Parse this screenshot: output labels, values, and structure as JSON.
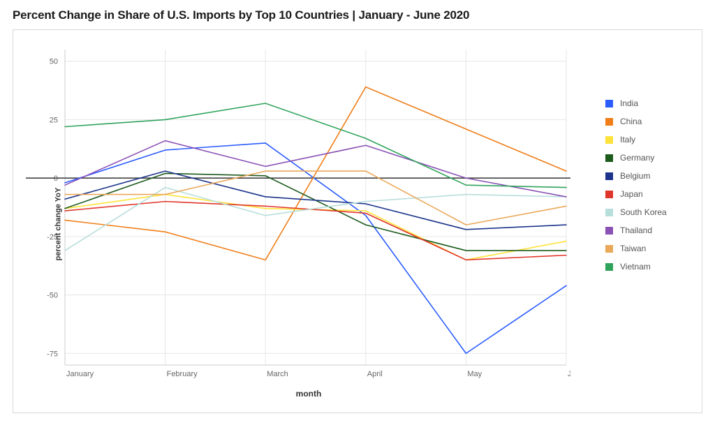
{
  "title": "Percent Change in Share of U.S. Imports by Top 10 Countries | January - June 2020",
  "chart": {
    "type": "line",
    "x_label": "month",
    "y_label": "percent change YoY",
    "categories": [
      "January",
      "February",
      "March",
      "April",
      "May",
      "June"
    ],
    "ylim": [
      -80,
      55
    ],
    "yticks": [
      -75,
      -50,
      -25,
      0,
      25,
      50
    ],
    "background_color": "#ffffff",
    "grid_color": "#e6e6e6",
    "axis_line_color": "#cccccc",
    "zero_line_color": "#333333",
    "zero_line_width": 1.5,
    "line_width": 1.6,
    "title_fontsize": 17,
    "label_fontsize": 12,
    "tick_fontsize": 11,
    "series": [
      {
        "name": "India",
        "color": "#2b5cff",
        "values": [
          -2,
          12,
          15,
          -16,
          -75,
          -46
        ]
      },
      {
        "name": "China",
        "color": "#ef7e18",
        "values": [
          -18,
          -23,
          -35,
          39,
          21,
          3
        ]
      },
      {
        "name": "Italy",
        "color": "#ffe33a",
        "values": [
          -13,
          -7,
          -13,
          -14,
          -35,
          -27
        ]
      },
      {
        "name": "Germany",
        "color": "#1d5b1d",
        "values": [
          -13,
          2,
          1,
          -20,
          -31,
          -31
        ]
      },
      {
        "name": "Belgium",
        "color": "#1c348c",
        "values": [
          -9,
          3,
          -8,
          -11,
          -22,
          -20
        ]
      },
      {
        "name": "Japan",
        "color": "#e0352b",
        "values": [
          -14,
          -10,
          -12,
          -15,
          -35,
          -33
        ]
      },
      {
        "name": "South Korea",
        "color": "#b7dedb",
        "values": [
          -31,
          -4,
          -16,
          -10,
          -7,
          -8
        ]
      },
      {
        "name": "Thailand",
        "color": "#8a52b5",
        "values": [
          -3,
          16,
          5,
          14,
          0,
          -8
        ]
      },
      {
        "name": "Taiwan",
        "color": "#eaa85a",
        "values": [
          -7,
          -7,
          3,
          3,
          -20,
          -12
        ]
      },
      {
        "name": "Vietnam",
        "color": "#2fa35c",
        "values": [
          22,
          25,
          32,
          17,
          -3,
          -4
        ]
      }
    ]
  }
}
